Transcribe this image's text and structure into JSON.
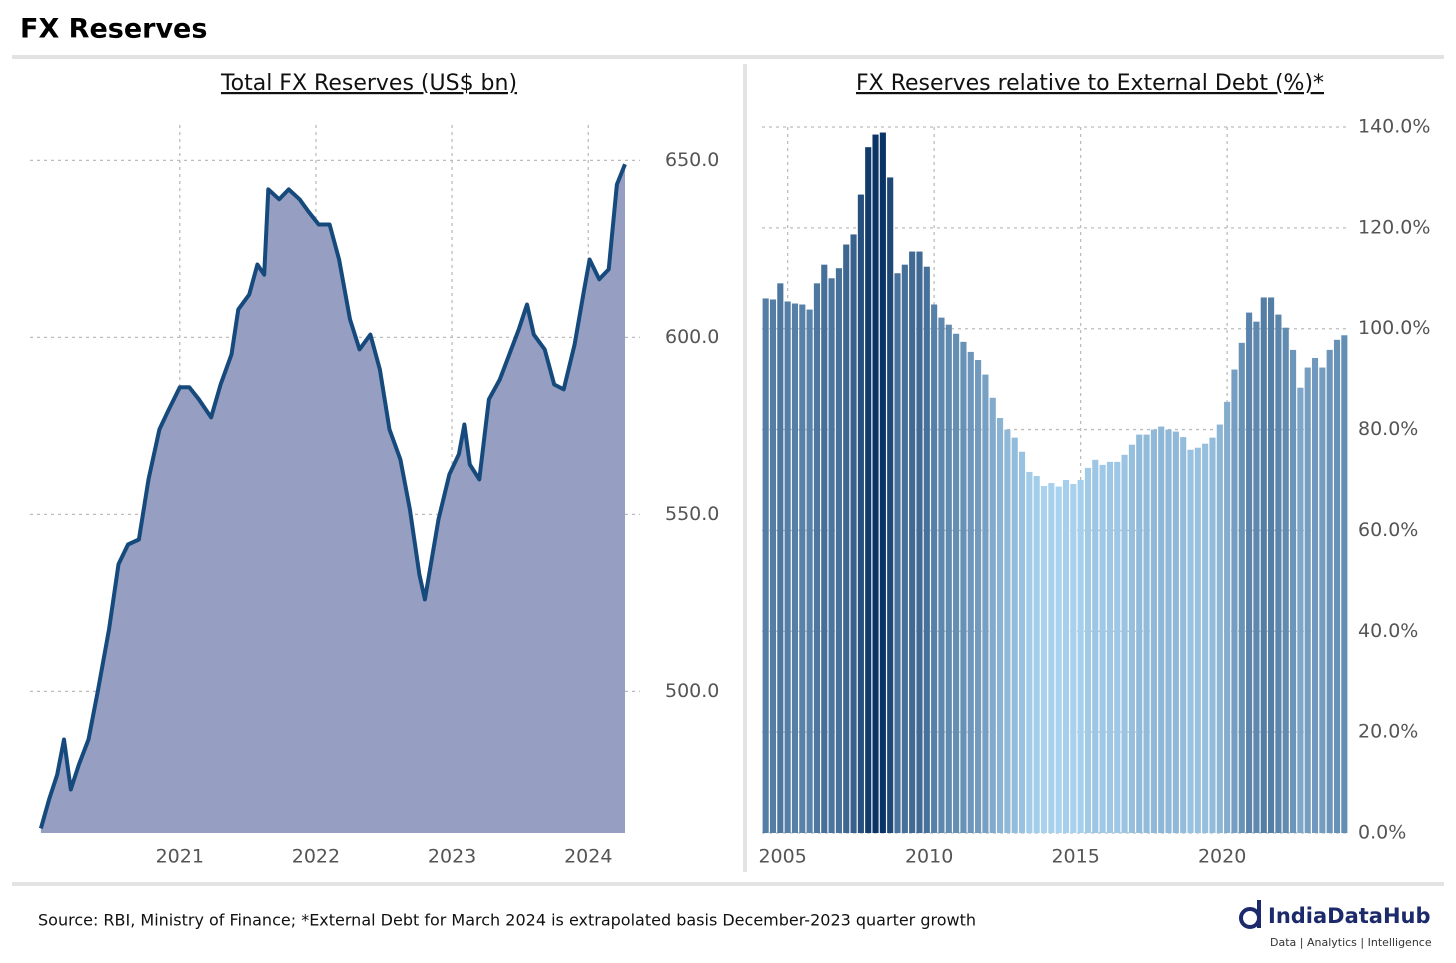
{
  "title": "FX Reserves",
  "chart_data": [
    {
      "type": "area",
      "title": "Total FX Reserves (US$ bn)",
      "x": [
        2019.98,
        2020.04,
        2020.1,
        2020.15,
        2020.2,
        2020.26,
        2020.33,
        2020.4,
        2020.48,
        2020.55,
        2020.62,
        2020.7,
        2020.77,
        2020.85,
        2020.92,
        2021.0,
        2021.07,
        2021.14,
        2021.23,
        2021.3,
        2021.38,
        2021.43,
        2021.51,
        2021.57,
        2021.62,
        2021.65,
        2021.73,
        2021.8,
        2021.88,
        2021.95,
        2022.02,
        2022.1,
        2022.17,
        2022.25,
        2022.32,
        2022.4,
        2022.47,
        2022.54,
        2022.62,
        2022.69,
        2022.76,
        2022.8,
        2022.85,
        2022.9,
        2022.98,
        2023.05,
        2023.09,
        2023.13,
        2023.2,
        2023.27,
        2023.35,
        2023.42,
        2023.49,
        2023.55,
        2023.6,
        2023.68,
        2023.75,
        2023.82,
        2023.9,
        2023.97,
        2024.01,
        2024.08,
        2024.15,
        2024.21,
        2024.27
      ],
      "values": [
        461.3,
        469.5,
        476.5,
        486.4,
        472.3,
        479.4,
        486.4,
        500.5,
        517.5,
        535.9,
        541.5,
        542.9,
        559.9,
        574.0,
        579.7,
        585.9,
        585.9,
        582.5,
        577.4,
        586.7,
        595.2,
        607.9,
        612.1,
        620.6,
        617.7,
        641.8,
        639.0,
        641.8,
        639.0,
        635.3,
        631.9,
        631.9,
        622.0,
        605.1,
        596.6,
        600.8,
        590.9,
        574.0,
        565.5,
        551.4,
        533.0,
        526.0,
        537.3,
        548.6,
        561.3,
        567.0,
        575.4,
        564.1,
        559.9,
        582.5,
        588.1,
        595.2,
        602.3,
        609.3,
        600.8,
        596.6,
        586.7,
        585.3,
        598.0,
        613.6,
        622.0,
        616.4,
        619.2,
        643.2,
        648.9
      ],
      "color": "#969fc1",
      "line_color": "#164a7d",
      "xlim": [
        2019.9,
        2024.38
      ],
      "xticks": [
        2021,
        2022,
        2023,
        2024
      ],
      "ylim": [
        460,
        660
      ],
      "yticks": [
        {
          "value": 500,
          "label": "500.0"
        },
        {
          "value": 550,
          "label": "550.0"
        },
        {
          "value": 600,
          "label": "600.0"
        },
        {
          "value": 650,
          "label": "650.0"
        }
      ],
      "grid": true
    },
    {
      "type": "bar",
      "title": "FX Reserves relative to External Debt (%)*",
      "categories": [
        null,
        null,
        null,
        "2005",
        null,
        null,
        null,
        null,
        null,
        null,
        null,
        null,
        null,
        null,
        null,
        null,
        null,
        null,
        null,
        null,
        null,
        null,
        null,
        "2010",
        null,
        null,
        null,
        null,
        null,
        null,
        null,
        null,
        null,
        null,
        null,
        null,
        null,
        null,
        null,
        null,
        null,
        null,
        null,
        "2015",
        null,
        null,
        null,
        null,
        null,
        null,
        null,
        null,
        null,
        null,
        null,
        null,
        null,
        null,
        null,
        null,
        null,
        null,
        null,
        "2020",
        null,
        null,
        null,
        null,
        null,
        null,
        null,
        null,
        null,
        null,
        null,
        null,
        null,
        null,
        null,
        null
      ],
      "values": [
        106,
        105.8,
        109,
        105.4,
        105,
        104.8,
        103.8,
        109,
        112.7,
        110,
        112,
        116.7,
        118.7,
        126.6,
        136,
        138.5,
        138.9,
        130,
        111,
        112.7,
        115.3,
        115.3,
        112.3,
        104.8,
        102.2,
        100.8,
        99.0,
        97.4,
        95.4,
        93.8,
        90.9,
        86.3,
        82.3,
        80,
        78.4,
        75.6,
        71.6,
        70.8,
        68.8,
        69.4,
        68.7,
        70,
        69.2,
        70,
        72.4,
        74,
        73,
        73.6,
        73.6,
        75,
        77,
        79,
        79,
        80,
        80.6,
        80,
        79.6,
        78.5,
        76,
        76.4,
        77.2,
        78.4,
        81,
        85.5,
        91.9,
        97.2,
        103.2,
        101.4,
        106.2,
        106.2,
        102.8,
        100.2,
        95.8,
        88.3,
        92.3,
        94.2,
        92.3,
        95.8,
        97.8,
        98.7
      ],
      "color_range": [
        "#a9d2ee",
        "#0b3466"
      ],
      "ylim": [
        0,
        140
      ],
      "yticks": [
        {
          "value": 0,
          "label": "0.0%"
        },
        {
          "value": 20,
          "label": "20.0%"
        },
        {
          "value": 40,
          "label": "40.0%"
        },
        {
          "value": 60,
          "label": "60.0%"
        },
        {
          "value": 80,
          "label": "80.0%"
        },
        {
          "value": 100,
          "label": "100.0%"
        },
        {
          "value": 120,
          "label": "120.0%"
        },
        {
          "value": 140,
          "label": "140.0%"
        }
      ],
      "grid": true
    }
  ],
  "source": "Source: RBI, Ministry of Finance; *External Debt for March 2024 is extrapolated basis December-2023 quarter growth",
  "logo": {
    "name": "IndiaDataHub",
    "tagline": "Data | Analytics | Intelligence"
  }
}
